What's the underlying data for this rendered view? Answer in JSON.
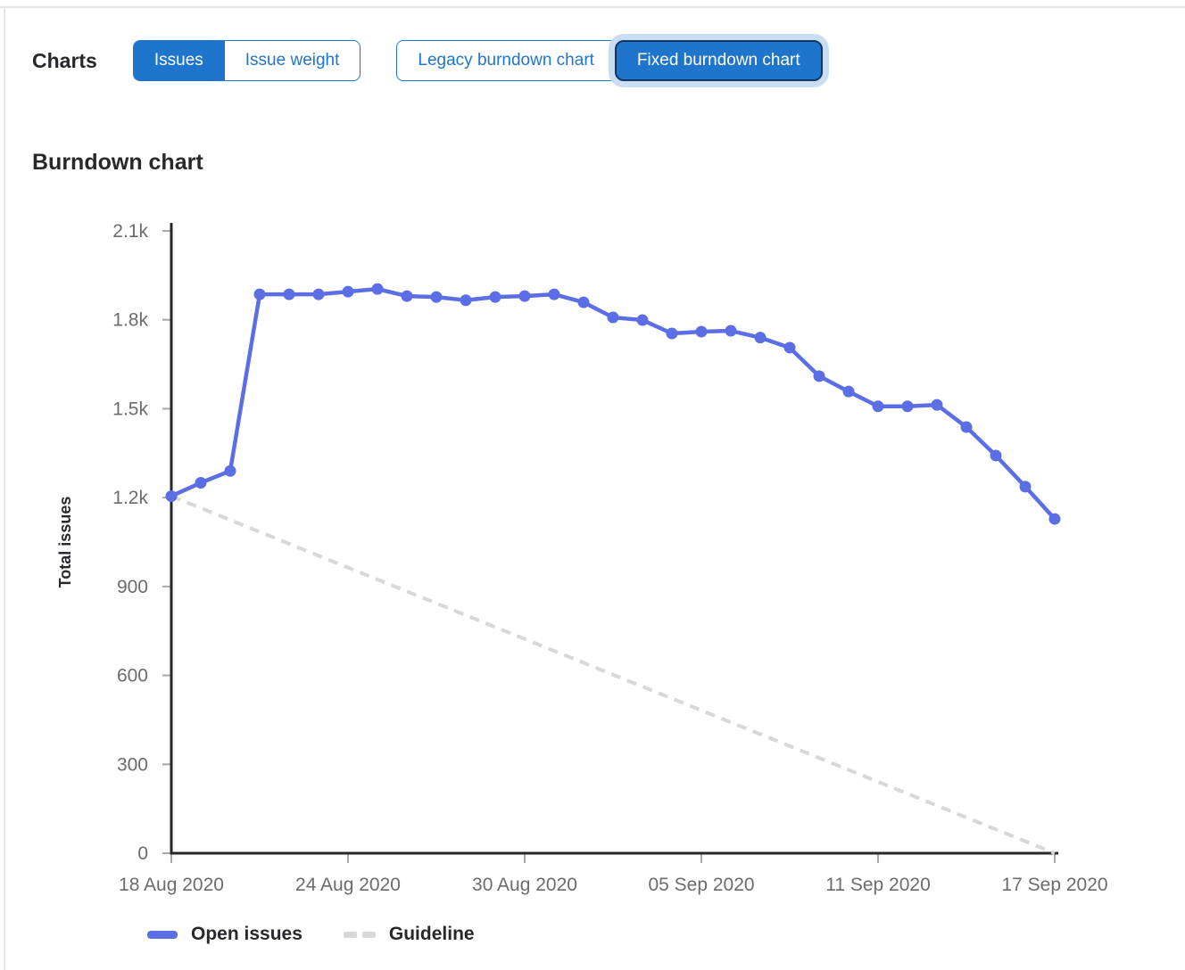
{
  "header": {
    "charts_label": "Charts",
    "metric_toggle": {
      "options": [
        "Issues",
        "Issue weight"
      ],
      "selected": "Issues"
    },
    "chart_type_toggle": {
      "options": [
        "Legacy burndown chart",
        "Fixed burndown chart"
      ],
      "selected": "Fixed burndown chart"
    }
  },
  "section": {
    "title": "Burndown chart"
  },
  "colors": {
    "accent_blue": "#1f75cb",
    "focus_ring_dark": "#11365f",
    "focus_halo": "#c9ddf3",
    "line_blue": "#5b6ee4",
    "guideline_gray": "#d8d8d8",
    "axis": "#28272d",
    "tick": "#a7a7ac",
    "tick_label": "#6b6b70",
    "text_dark": "#28272d"
  },
  "chart_data": {
    "type": "line",
    "title": "Burndown chart",
    "xlabel": "",
    "ylabel": "Total issues",
    "ylim": [
      0,
      2100
    ],
    "grid": false,
    "legend_position": "bottom",
    "yticks": {
      "values": [
        0,
        300,
        600,
        900,
        1200,
        1500,
        1800,
        2100
      ],
      "labels": [
        "0",
        "300",
        "600",
        "900",
        "1.2k",
        "1.5k",
        "1.8k",
        "2.1k"
      ]
    },
    "x": [
      "18 Aug 2020",
      "19 Aug 2020",
      "20 Aug 2020",
      "21 Aug 2020",
      "22 Aug 2020",
      "23 Aug 2020",
      "24 Aug 2020",
      "25 Aug 2020",
      "26 Aug 2020",
      "27 Aug 2020",
      "28 Aug 2020",
      "29 Aug 2020",
      "30 Aug 2020",
      "31 Aug 2020",
      "01 Sep 2020",
      "02 Sep 2020",
      "03 Sep 2020",
      "04 Sep 2020",
      "05 Sep 2020",
      "06 Sep 2020",
      "07 Sep 2020",
      "08 Sep 2020",
      "09 Sep 2020",
      "10 Sep 2020",
      "11 Sep 2020",
      "12 Sep 2020",
      "13 Sep 2020",
      "14 Sep 2020",
      "15 Sep 2020",
      "16 Sep 2020",
      "17 Sep 2020"
    ],
    "xtick_labels": [
      "18 Aug 2020",
      "24 Aug 2020",
      "30 Aug 2020",
      "05 Sep 2020",
      "11 Sep 2020",
      "17 Sep 2020"
    ],
    "xtick_indices": [
      0,
      6,
      12,
      18,
      24,
      30
    ],
    "series": [
      {
        "name": "Open issues",
        "style": "solid",
        "color": "#5b6ee4",
        "values": [
          1205,
          1250,
          1290,
          1886,
          1886,
          1886,
          1895,
          1904,
          1880,
          1877,
          1866,
          1877,
          1880,
          1886,
          1859,
          1808,
          1799,
          1754,
          1760,
          1763,
          1740,
          1706,
          1610,
          1558,
          1508,
          1508,
          1513,
          1438,
          1342,
          1237,
          1128
        ]
      },
      {
        "name": "Guideline",
        "style": "dashed",
        "color": "#d8d8d8",
        "endpoints": [
          1205,
          0
        ]
      }
    ]
  },
  "legend": {
    "items": [
      {
        "label": "Open issues"
      },
      {
        "label": "Guideline"
      }
    ]
  }
}
